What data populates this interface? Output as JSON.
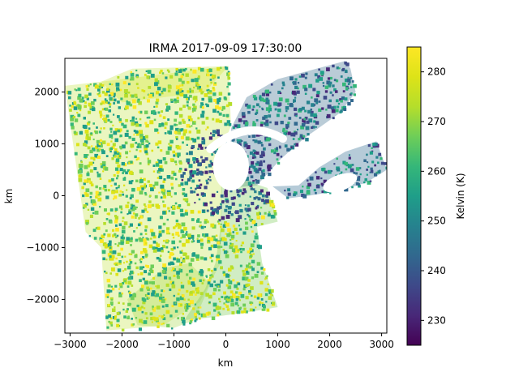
{
  "chart_data": {
    "type": "heatmap",
    "title": "IRMA 2017-09-09 17:30:00",
    "xlabel": "km",
    "ylabel": "km",
    "xlim": [
      -3100,
      3100
    ],
    "ylim": [
      -2650,
      2650
    ],
    "x_ticks": [
      -3000,
      -2000,
      -1000,
      0,
      1000,
      2000,
      3000
    ],
    "y_ticks": [
      -2000,
      -1000,
      0,
      1000,
      2000
    ],
    "x_tick_labels": [
      "−3000",
      "−2000",
      "−1000",
      "0",
      "1000",
      "2000",
      "3000"
    ],
    "y_tick_labels": [
      "−2000",
      "−1000",
      "0",
      "1000",
      "2000"
    ],
    "colorbar": {
      "label": "Kelvin (K)",
      "range": [
        225,
        285
      ],
      "ticks": [
        230,
        240,
        250,
        260,
        270,
        280
      ],
      "tick_labels": [
        "230",
        "240",
        "250",
        "260",
        "270",
        "280"
      ],
      "colormap": "viridis"
    },
    "grid": false,
    "hurricane_eye_km": [
      20,
      420
    ],
    "swath_polygons_km": [
      [
        [
          -3100,
          2120
        ],
        [
          -2400,
          2200
        ],
        [
          -2050,
          2350
        ],
        [
          -1800,
          2450
        ],
        [
          50,
          2500
        ],
        [
          100,
          1350
        ],
        [
          -60,
          950
        ],
        [
          -100,
          -1300
        ],
        [
          -500,
          -2050
        ],
        [
          -1200,
          -2500
        ],
        [
          -1700,
          -2550
        ],
        [
          -2300,
          -2600
        ],
        [
          -2400,
          -1000
        ],
        [
          -2700,
          -700
        ]
      ],
      [
        [
          -1900,
          -2000
        ],
        [
          -1700,
          -2500
        ],
        [
          -1000,
          -2550
        ],
        [
          -600,
          -2400
        ],
        [
          -300,
          -1700
        ],
        [
          -700,
          -1300
        ],
        [
          -1200,
          -1400
        ]
      ],
      [
        [
          50,
          2500
        ],
        [
          -400,
          2000
        ],
        [
          -2000,
          1800
        ],
        [
          -2400,
          2200
        ]
      ],
      [
        [
          100,
          1300
        ],
        [
          400,
          1900
        ],
        [
          1000,
          2250
        ],
        [
          2300,
          2600
        ],
        [
          2400,
          2450
        ],
        [
          2500,
          2000
        ],
        [
          2200,
          1600
        ],
        [
          1500,
          1100
        ],
        [
          1050,
          700
        ],
        [
          600,
          200
        ],
        [
          80,
          150
        ]
      ],
      [
        [
          900,
          180
        ],
        [
          1400,
          200
        ],
        [
          1800,
          550
        ],
        [
          2300,
          850
        ],
        [
          2900,
          1050
        ],
        [
          3100,
          500
        ],
        [
          2700,
          250
        ],
        [
          2200,
          100
        ],
        [
          1600,
          0
        ],
        [
          1200,
          -50
        ]
      ],
      [
        [
          -80,
          900
        ],
        [
          500,
          250
        ],
        [
          800,
          150
        ],
        [
          1000,
          -500
        ],
        [
          600,
          -600
        ],
        [
          700,
          -1300
        ],
        [
          1000,
          -2150
        ],
        [
          400,
          -2250
        ],
        [
          -300,
          -2350
        ],
        [
          -800,
          -2400
        ],
        [
          -400,
          -1800
        ],
        [
          -200,
          -1300
        ],
        [
          -100,
          -600
        ]
      ]
    ]
  }
}
